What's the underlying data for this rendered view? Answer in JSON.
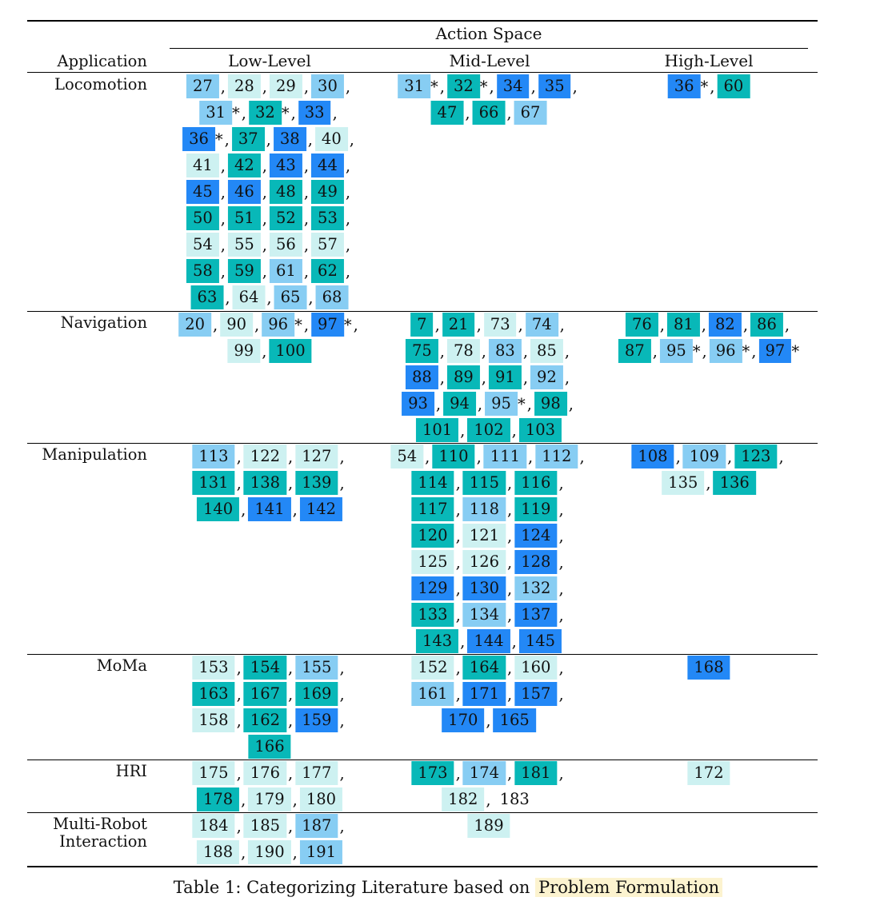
{
  "header": {
    "application_label": "Application",
    "action_space_label": "Action Space",
    "columns": [
      "Low-Level",
      "Mid-Level",
      "High-Level"
    ]
  },
  "colors": {
    "t": "#08b8b8",
    "b": "#2388f6",
    "l": "#87cdf3",
    "p": "#cdf1f1"
  },
  "caption": {
    "prefix": "Table 1: Categorizing Literature based on ",
    "highlight": "Problem Formulation"
  },
  "rows": [
    {
      "application": [
        "Locomotion"
      ],
      "low": [
        [
          [
            "27",
            "l"
          ],
          [
            "28",
            "p"
          ],
          [
            "29",
            "p"
          ],
          [
            "30",
            "l"
          ]
        ],
        [
          [
            "31*",
            "l"
          ],
          [
            "32*",
            "t"
          ],
          [
            "33",
            "b"
          ]
        ],
        [
          [
            "36*",
            "b"
          ],
          [
            "37",
            "t"
          ],
          [
            "38",
            "b"
          ],
          [
            "40",
            "p"
          ]
        ],
        [
          [
            "41",
            "p"
          ],
          [
            "42",
            "t"
          ],
          [
            "43",
            "b"
          ],
          [
            "44",
            "b"
          ]
        ],
        [
          [
            "45",
            "b"
          ],
          [
            "46",
            "b"
          ],
          [
            "48",
            "t"
          ],
          [
            "49",
            "t"
          ]
        ],
        [
          [
            "50",
            "t"
          ],
          [
            "51",
            "t"
          ],
          [
            "52",
            "t"
          ],
          [
            "53",
            "t"
          ]
        ],
        [
          [
            "54",
            "p"
          ],
          [
            "55",
            "p"
          ],
          [
            "56",
            "p"
          ],
          [
            "57",
            "p"
          ]
        ],
        [
          [
            "58",
            "t"
          ],
          [
            "59",
            "t"
          ],
          [
            "61",
            "l"
          ],
          [
            "62",
            "t"
          ]
        ],
        [
          [
            "63",
            "t"
          ],
          [
            "64",
            "p"
          ],
          [
            "65",
            "l"
          ],
          [
            "68",
            "l"
          ]
        ]
      ],
      "mid": [
        [
          [
            "31*",
            "l"
          ],
          [
            "32*",
            "t"
          ],
          [
            "34",
            "b"
          ],
          [
            "35",
            "b"
          ]
        ],
        [
          [
            "47",
            "t"
          ],
          [
            "66",
            "t"
          ],
          [
            "67",
            "l"
          ]
        ]
      ],
      "high": [
        [
          [
            "36*",
            "b"
          ],
          [
            "60",
            "t"
          ]
        ]
      ]
    },
    {
      "application": [
        "Navigation"
      ],
      "low": [
        [
          [
            "20",
            "l"
          ],
          [
            "90",
            "p"
          ],
          [
            "96*",
            "l"
          ],
          [
            "97*",
            "b"
          ]
        ],
        [
          [
            "99",
            "p"
          ],
          [
            "100",
            "t"
          ]
        ]
      ],
      "mid": [
        [
          [
            "7",
            "t"
          ],
          [
            "21",
            "t"
          ],
          [
            "73",
            "p"
          ],
          [
            "74",
            "l"
          ]
        ],
        [
          [
            "75",
            "t"
          ],
          [
            "78",
            "p"
          ],
          [
            "83",
            "l"
          ],
          [
            "85",
            "p"
          ]
        ],
        [
          [
            "88",
            "b"
          ],
          [
            "89",
            "t"
          ],
          [
            "91",
            "t"
          ],
          [
            "92",
            "l"
          ]
        ],
        [
          [
            "93",
            "b"
          ],
          [
            "94",
            "t"
          ],
          [
            "95*",
            "l"
          ],
          [
            "98",
            "t"
          ]
        ],
        [
          [
            "101",
            "t"
          ],
          [
            "102",
            "t"
          ],
          [
            "103",
            "t"
          ]
        ]
      ],
      "high": [
        [
          [
            "76",
            "t"
          ],
          [
            "81",
            "t"
          ],
          [
            "82",
            "b"
          ],
          [
            "86",
            "t"
          ]
        ],
        [
          [
            "87",
            "t"
          ],
          [
            "95*",
            "l"
          ],
          [
            "96*",
            "l"
          ],
          [
            "97*",
            "b"
          ]
        ]
      ]
    },
    {
      "application": [
        "Manipulation"
      ],
      "low": [
        [
          [
            "113",
            "l"
          ],
          [
            "122",
            "p"
          ],
          [
            "127",
            "p"
          ]
        ],
        [
          [
            "131",
            "t"
          ],
          [
            "138",
            "t"
          ],
          [
            "139",
            "t"
          ]
        ],
        [
          [
            "140",
            "t"
          ],
          [
            "141",
            "b"
          ],
          [
            "142",
            "b"
          ]
        ]
      ],
      "mid": [
        [
          [
            "54",
            "p"
          ],
          [
            "110",
            "t"
          ],
          [
            "111",
            "l"
          ],
          [
            "112",
            "l"
          ]
        ],
        [
          [
            "114",
            "t"
          ],
          [
            "115",
            "t"
          ],
          [
            "116",
            "t"
          ]
        ],
        [
          [
            "117",
            "t"
          ],
          [
            "118",
            "l"
          ],
          [
            "119",
            "t"
          ]
        ],
        [
          [
            "120",
            "t"
          ],
          [
            "121",
            "p"
          ],
          [
            "124",
            "b"
          ]
        ],
        [
          [
            "125",
            "p"
          ],
          [
            "126",
            "p"
          ],
          [
            "128",
            "b"
          ]
        ],
        [
          [
            "129",
            "b"
          ],
          [
            "130",
            "b"
          ],
          [
            "132",
            "l"
          ]
        ],
        [
          [
            "133",
            "t"
          ],
          [
            "134",
            "l"
          ],
          [
            "137",
            "b"
          ]
        ],
        [
          [
            "143",
            "t"
          ],
          [
            "144",
            "b"
          ],
          [
            "145",
            "b"
          ]
        ]
      ],
      "high": [
        [
          [
            "108",
            "b"
          ],
          [
            "109",
            "l"
          ],
          [
            "123",
            "t"
          ]
        ],
        [
          [
            "135",
            "p"
          ],
          [
            "136",
            "t"
          ]
        ]
      ]
    },
    {
      "application": [
        "MoMa"
      ],
      "low": [
        [
          [
            "153",
            "p"
          ],
          [
            "154",
            "t"
          ],
          [
            "155",
            "l"
          ]
        ],
        [
          [
            "163",
            "t"
          ],
          [
            "167",
            "t"
          ],
          [
            "169",
            "t"
          ]
        ],
        [
          [
            "158",
            "p"
          ],
          [
            "162",
            "t"
          ],
          [
            "159",
            "b"
          ]
        ],
        [
          [
            "166",
            "t"
          ]
        ]
      ],
      "mid": [
        [
          [
            "152",
            "p"
          ],
          [
            "164",
            "t"
          ],
          [
            "160",
            "p"
          ]
        ],
        [
          [
            "161",
            "l"
          ],
          [
            "171",
            "b"
          ],
          [
            "157",
            "b"
          ]
        ],
        [
          [
            "170",
            "b"
          ],
          [
            "165",
            "b"
          ]
        ]
      ],
      "high": [
        [
          [
            "168",
            "b"
          ]
        ]
      ]
    },
    {
      "application": [
        "HRI"
      ],
      "low": [
        [
          [
            "175",
            "p"
          ],
          [
            "176",
            "p"
          ],
          [
            "177",
            "p"
          ]
        ],
        [
          [
            "178",
            "t"
          ],
          [
            "179",
            "p"
          ],
          [
            "180",
            "p"
          ]
        ]
      ],
      "mid": [
        [
          [
            "173",
            "t"
          ],
          [
            "174",
            "l"
          ],
          [
            "181",
            "t"
          ]
        ],
        [
          [
            "182",
            "p"
          ],
          [
            "183",
            "n"
          ]
        ]
      ],
      "high": [
        [
          [
            "172",
            "p"
          ]
        ]
      ]
    },
    {
      "application": [
        "Multi-Robot",
        "Interaction"
      ],
      "low": [
        [
          [
            "184",
            "p"
          ],
          [
            "185",
            "p"
          ],
          [
            "187",
            "l"
          ]
        ],
        [
          [
            "188",
            "p"
          ],
          [
            "190",
            "p"
          ],
          [
            "191",
            "l"
          ]
        ]
      ],
      "mid": [
        [
          [
            "189",
            "p"
          ]
        ]
      ],
      "high": []
    }
  ]
}
